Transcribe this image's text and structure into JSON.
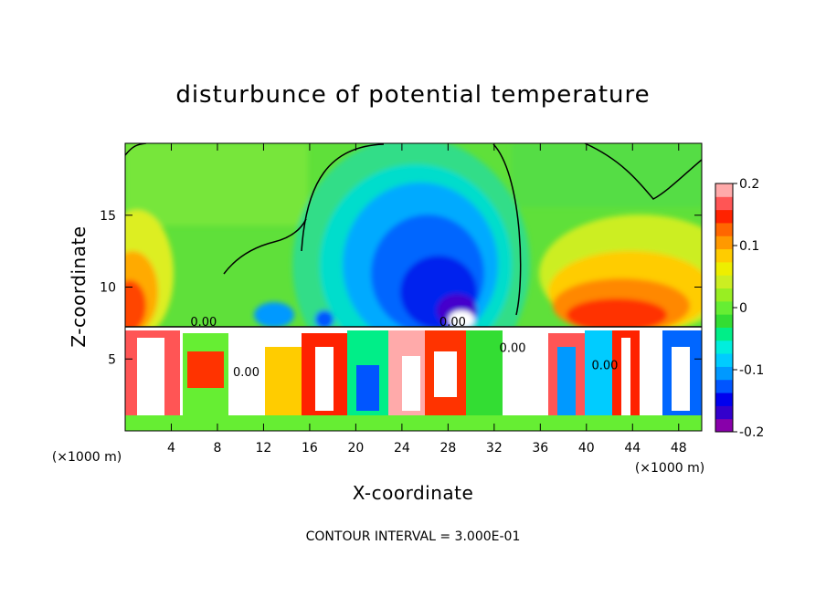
{
  "chart_data": {
    "type": "heatmap",
    "title": "disturbunce of potential temperature",
    "xlabel": "X-coordinate",
    "ylabel": "Z-coordinate",
    "x_unit": "(×1000 m)",
    "x_unit_right": "(×1000 m)",
    "xlim": [
      0,
      50
    ],
    "ylim": [
      0,
      20
    ],
    "x_ticks": [
      4,
      8,
      12,
      16,
      20,
      24,
      28,
      32,
      36,
      40,
      44,
      48
    ],
    "y_ticks": [
      5,
      10,
      15
    ],
    "colorbar": {
      "range": [
        -0.2,
        0.2
      ],
      "ticks": [
        {
          "value": 0.2,
          "label": "0.2"
        },
        {
          "value": 0.1,
          "label": "0.1"
        },
        {
          "value": 0,
          "label": "0"
        },
        {
          "value": -0.1,
          "label": "-0.1"
        },
        {
          "value": -0.2,
          "label": "-0.2"
        }
      ],
      "colors": [
        "#8800aa",
        "#3300cc",
        "#0000ee",
        "#0055ff",
        "#0099ff",
        "#00ccff",
        "#00eedd",
        "#00ee88",
        "#33dd33",
        "#66ee33",
        "#99ee22",
        "#ccee22",
        "#eeee00",
        "#ffcc00",
        "#ff9900",
        "#ff6600",
        "#ff2200",
        "#ff5555",
        "#ffaaaa"
      ]
    },
    "contour_labels": [
      "0.00",
      "0.00",
      "0.00",
      "0.00",
      "0.00"
    ],
    "contour_interval_text": "CONTOUR INTERVAL = 3.000E-01"
  }
}
